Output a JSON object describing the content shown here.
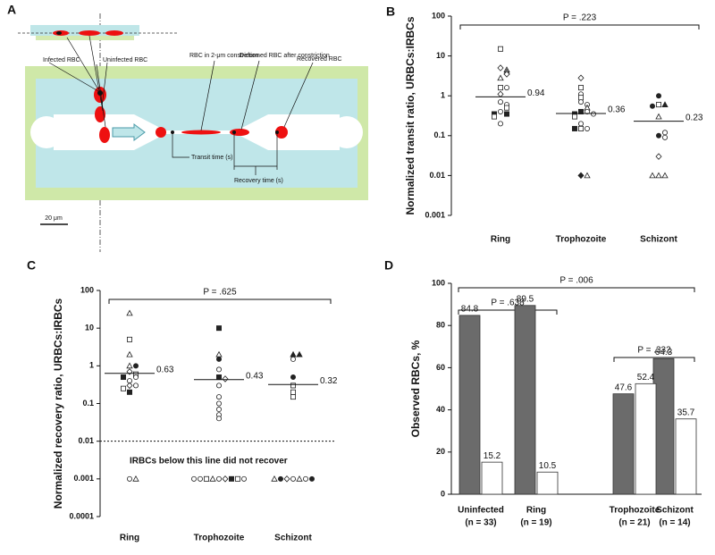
{
  "diagram": {
    "panel": "A",
    "labels": {
      "infected": "Infected RBC",
      "uninfected": "Uninfected RBC",
      "constriction": "RBC in 2-μm constriction",
      "deformed": "Deformed RBC after constriction",
      "recovered": "Recovered RBC",
      "transit": "Transit time (s)",
      "recovery": "Recovery time (s)",
      "scale": "20 μm"
    }
  },
  "chart_data": [
    {
      "type": "strip",
      "panel": "B",
      "ylabel": "Normalized transit ratio, URBCs:IRBCs",
      "categories": [
        "Ring",
        "Trophozoite",
        "Schizont"
      ],
      "log_scale": true,
      "ylim": [
        0.001,
        100
      ],
      "yticks": [
        0.001,
        0.01,
        0.1,
        1,
        10,
        100
      ],
      "values": [
        [
          15,
          5,
          4.5,
          4,
          3.5,
          2.8,
          1.6,
          1.6,
          1.1,
          0.7,
          0.6,
          0.5,
          0.4,
          0.35,
          0.35,
          0.3,
          0.2
        ],
        [
          2.8,
          1.6,
          1.1,
          0.9,
          0.7,
          0.6,
          0.5,
          0.4,
          0.4,
          0.35,
          0.35,
          0.3,
          0.2,
          0.15,
          0.15,
          0.15,
          0.01,
          0.01
        ],
        [
          1,
          0.6,
          0.6,
          0.55,
          0.3,
          0.1,
          0.09,
          0.12,
          0.03,
          0.01,
          0.01,
          0.01
        ]
      ],
      "markers": [
        [
          "s",
          "d",
          "t",
          "t",
          "d",
          "t",
          "s",
          "o",
          "d",
          "o",
          "o",
          "s",
          "o",
          "S",
          "S",
          "s",
          "o"
        ],
        [
          "d",
          "s",
          "o",
          "s",
          "o",
          "o",
          "t",
          "S",
          "o",
          "S",
          "o",
          "s",
          "o",
          "s",
          "o",
          "S",
          "D",
          "t"
        ],
        [
          "O",
          "s",
          "T",
          "O",
          "t",
          "O",
          "o",
          "o",
          "d",
          "t",
          "t",
          "t"
        ]
      ],
      "medians": [
        0.94,
        0.36,
        0.23
      ],
      "annotations": [
        "P = .223"
      ],
      "color": "#222222"
    },
    {
      "type": "strip",
      "panel": "C",
      "ylabel": "Normalized recovery ratio, URBCs:IRBCs",
      "categories": [
        "Ring",
        "Trophozoite",
        "Schizont"
      ],
      "log_scale": true,
      "ylim": [
        0.0001,
        100
      ],
      "yticks": [
        0.0001,
        0.001,
        0.01,
        0.1,
        1,
        10,
        100
      ],
      "values": [
        [
          25,
          5,
          2,
          1,
          1,
          0.7,
          0.6,
          0.5,
          0.5,
          0.4,
          0.3,
          0.3,
          0.25,
          0.2,
          0.001,
          0.001
        ],
        [
          10,
          2,
          1.5,
          0.8,
          0.5,
          0.45,
          0.3,
          0.15,
          0.1,
          0.07,
          0.05,
          0.04,
          0.001,
          0.001,
          0.001,
          0.001,
          0.001,
          0.001,
          0.001,
          0.001,
          0.001
        ],
        [
          2,
          2,
          1.5,
          0.5,
          0.3,
          0.2,
          0.15,
          0.001,
          0.001,
          0.001,
          0.001,
          0.001,
          0.001,
          0.001
        ]
      ],
      "markers": [
        [
          "t",
          "s",
          "t",
          "t",
          "O",
          "d",
          "s",
          "o",
          "S",
          "o",
          "d",
          "o",
          "s",
          "S",
          "o",
          "t"
        ],
        [
          "S",
          "t",
          "O",
          "o",
          "S",
          "d",
          "o",
          "o",
          "o",
          "o",
          "o",
          "o",
          "o",
          "d",
          "t",
          "S",
          "s",
          "s",
          "o",
          "o",
          "o"
        ],
        [
          "T",
          "T",
          "o",
          "O",
          "s",
          "s",
          "s",
          "o",
          "t",
          "d",
          "o",
          "O",
          "O",
          "t"
        ]
      ],
      "medians": [
        0.63,
        0.43,
        0.32
      ],
      "annotations": [
        "P = .625"
      ],
      "threshold": 0.01,
      "threshold_label": "IRBCs below this line did not recover",
      "color": "#222222"
    },
    {
      "type": "bar",
      "panel": "D",
      "ylabel": "Observed RBCs, %",
      "categories": [
        "Uninfected",
        "Ring",
        "Trophozoite",
        "Schizont"
      ],
      "sample_sizes": [
        "(n = 33)",
        "(n = 19)",
        "(n = 21)",
        "(n = 14)"
      ],
      "series": [
        {
          "color": "#6b6b6b",
          "values": [
            84.8,
            89.5,
            47.6,
            64.3
          ]
        },
        {
          "color": "#ffffff",
          "values": [
            15.2,
            10.5,
            52.4,
            35.7
          ]
        }
      ],
      "ylim": [
        0,
        100
      ],
      "yticks": [
        0,
        20,
        40,
        60,
        80,
        100
      ],
      "annotations": [
        "P = .006",
        "P = .638",
        "P = .332"
      ]
    }
  ]
}
